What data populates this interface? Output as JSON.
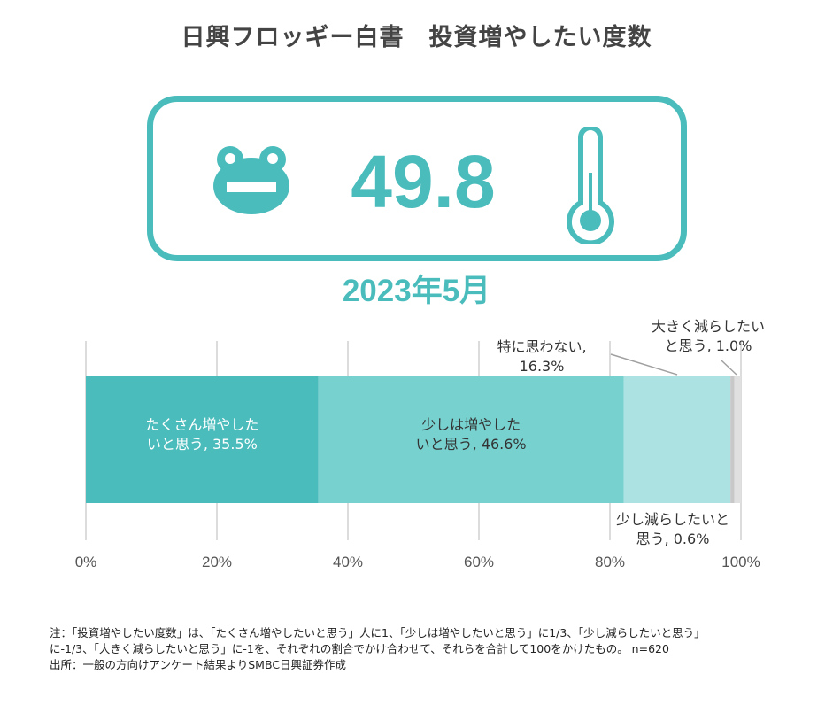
{
  "title": "日興フロッギー白書　投資増やしたい度数",
  "index": {
    "value": "49.8",
    "date": "2023年5月",
    "frog_icon": "frog-icon",
    "thermometer_icon": "thermometer-icon"
  },
  "colors": {
    "accent": "#4bbcbc",
    "seg1": "#4bbcbc",
    "seg2": "#77d1cf",
    "seg3": "#ace3e2",
    "seg4": "#c8c8c8",
    "seg5": "#e0e0e0"
  },
  "chart_data": {
    "type": "bar",
    "orientation": "horizontal-stacked",
    "xlim": [
      0,
      100
    ],
    "xticks": [
      "0%",
      "20%",
      "40%",
      "60%",
      "80%",
      "100%"
    ],
    "tick_values": [
      0,
      20,
      40,
      60,
      80,
      100
    ],
    "grid": true,
    "series": [
      {
        "name": "たくさん増やしたいと思う",
        "value": 35.5,
        "label_lines": [
          "たくさん増やした",
          "いと思う, 35.5%"
        ]
      },
      {
        "name": "少しは増やしたいと思う",
        "value": 46.6,
        "label_lines": [
          "少しは増やした",
          "いと思う, 46.6%"
        ]
      },
      {
        "name": "特に思わない",
        "value": 16.3,
        "label_lines": [
          "特に思わない,",
          "16.3%"
        ]
      },
      {
        "name": "少し減らしたいと思う",
        "value": 0.6,
        "label_lines": [
          "少し減らしたいと",
          "思う, 0.6%"
        ]
      },
      {
        "name": "大きく減らしたいと思う",
        "value": 1.0,
        "label_lines": [
          "大きく減らしたい",
          "と思う, 1.0%"
        ]
      }
    ]
  },
  "footnote": {
    "line1": "注：「投資増やしたい度数」は、「たくさん増やしたいと思う」人に1、「少しは増やしたいと思う」に1/3、「少し減らしたいと思う」",
    "line2": "に-1/3、「大きく減らしたいと思う」に-1を、それぞれの割合でかけ合わせて、それらを合計して100をかけたもの。 n=620",
    "line3": "出所：一般の方向けアンケート結果よりSMBC日興証券作成"
  }
}
